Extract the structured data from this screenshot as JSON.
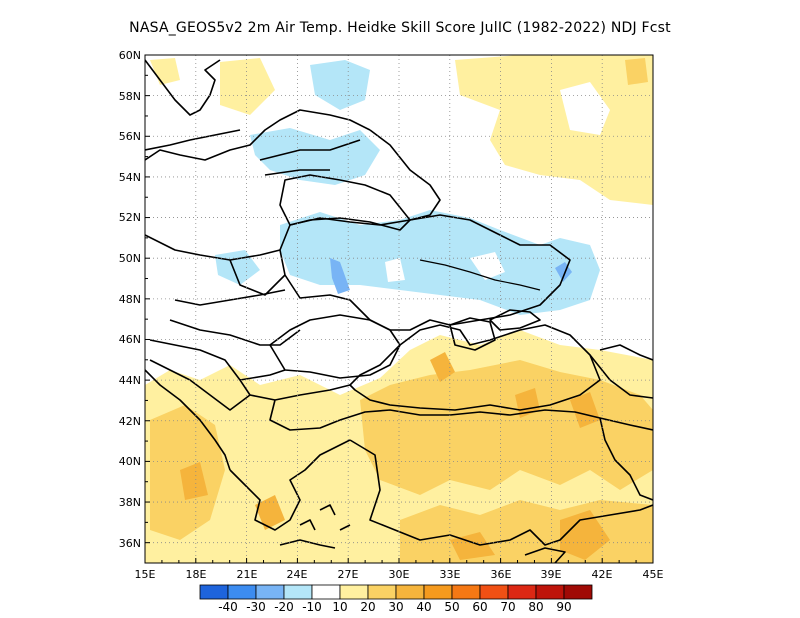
{
  "title": "NASA_GEOS5v2  2m Air Temp. Heidke Skill Score JulIC (1982-2022) NDJ Fcst",
  "map": {
    "lat_labels": [
      "60N",
      "58N",
      "56N",
      "54N",
      "52N",
      "50N",
      "48N",
      "46N",
      "44N",
      "42N",
      "40N",
      "38N",
      "36N"
    ],
    "lon_labels": [
      "15E",
      "18E",
      "21E",
      "24E",
      "27E",
      "30E",
      "33E",
      "36E",
      "39E",
      "42E",
      "45E"
    ],
    "lon_range": [
      15,
      45
    ],
    "lat_range": [
      35,
      60
    ],
    "grid": "dotted"
  },
  "colorbar": {
    "colors": [
      "#1e64dc",
      "#3c8cf0",
      "#78b4f5",
      "#b4e6f8",
      "#ffffff",
      "#fff0a0",
      "#fad264",
      "#f5b43c",
      "#f59a1e",
      "#f57814",
      "#f05014",
      "#dc2814",
      "#be140a",
      "#a00a05"
    ],
    "labels": [
      "-40",
      "-30",
      "-20",
      "-10",
      "10",
      "20",
      "30",
      "40",
      "50",
      "60",
      "70",
      "80",
      "90"
    ]
  },
  "colors": {
    "light_blue": "#b4e6f8",
    "mid_blue": "#78b4f5",
    "pale_yellow": "#fff0a0",
    "yellow": "#fad264",
    "orange": "#f5b43c",
    "dark_orange": "#f59a1e"
  }
}
